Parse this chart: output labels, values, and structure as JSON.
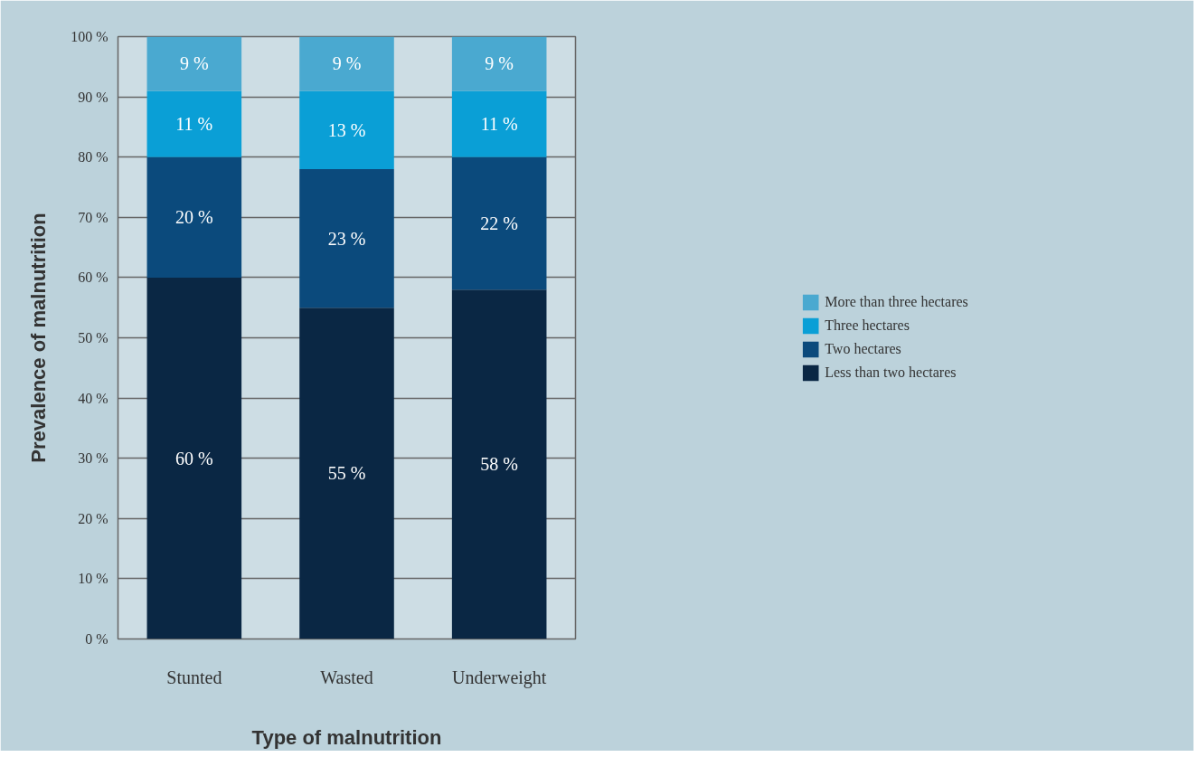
{
  "chart_data": {
    "type": "bar",
    "stacked": true,
    "xlabel": "Type of malnutrition",
    "ylabel": "Prevalence of malnutrition",
    "categories": [
      "Stunted",
      "Wasted",
      "Underweight"
    ],
    "series": [
      {
        "name": "Less than two hectares",
        "color": "#0a2744",
        "values": [
          60,
          55,
          58
        ],
        "value_labels": [
          "60 %",
          "55 %",
          "58 %"
        ]
      },
      {
        "name": "Two hectares",
        "color": "#0b4a7c",
        "values": [
          20,
          23,
          22
        ],
        "value_labels": [
          "20 %",
          "23 %",
          "22 %"
        ]
      },
      {
        "name": "Three hectares",
        "color": "#0a9fd6",
        "values": [
          11,
          13,
          11
        ],
        "value_labels": [
          "11 %",
          "13 %",
          "11 %"
        ]
      },
      {
        "name": "More than three hectares",
        "color": "#4aa9d0",
        "values": [
          9,
          9,
          9
        ],
        "value_labels": [
          "9 %",
          "9 %",
          "9 %"
        ]
      }
    ],
    "ylim": [
      0,
      100
    ],
    "yticks": [
      {
        "value": 0,
        "label": "0 %"
      },
      {
        "value": 10,
        "label": "10 %"
      },
      {
        "value": 20,
        "label": "20 %"
      },
      {
        "value": 30,
        "label": "30 %"
      },
      {
        "value": 40,
        "label": "40 %"
      },
      {
        "value": 50,
        "label": "50 %"
      },
      {
        "value": 60,
        "label": "60 %"
      },
      {
        "value": 70,
        "label": "70 %"
      },
      {
        "value": 80,
        "label": "80 %"
      },
      {
        "value": 90,
        "label": "90 %"
      },
      {
        "value": 100,
        "label": "100 %"
      }
    ],
    "grid": "y",
    "legend": "right"
  }
}
